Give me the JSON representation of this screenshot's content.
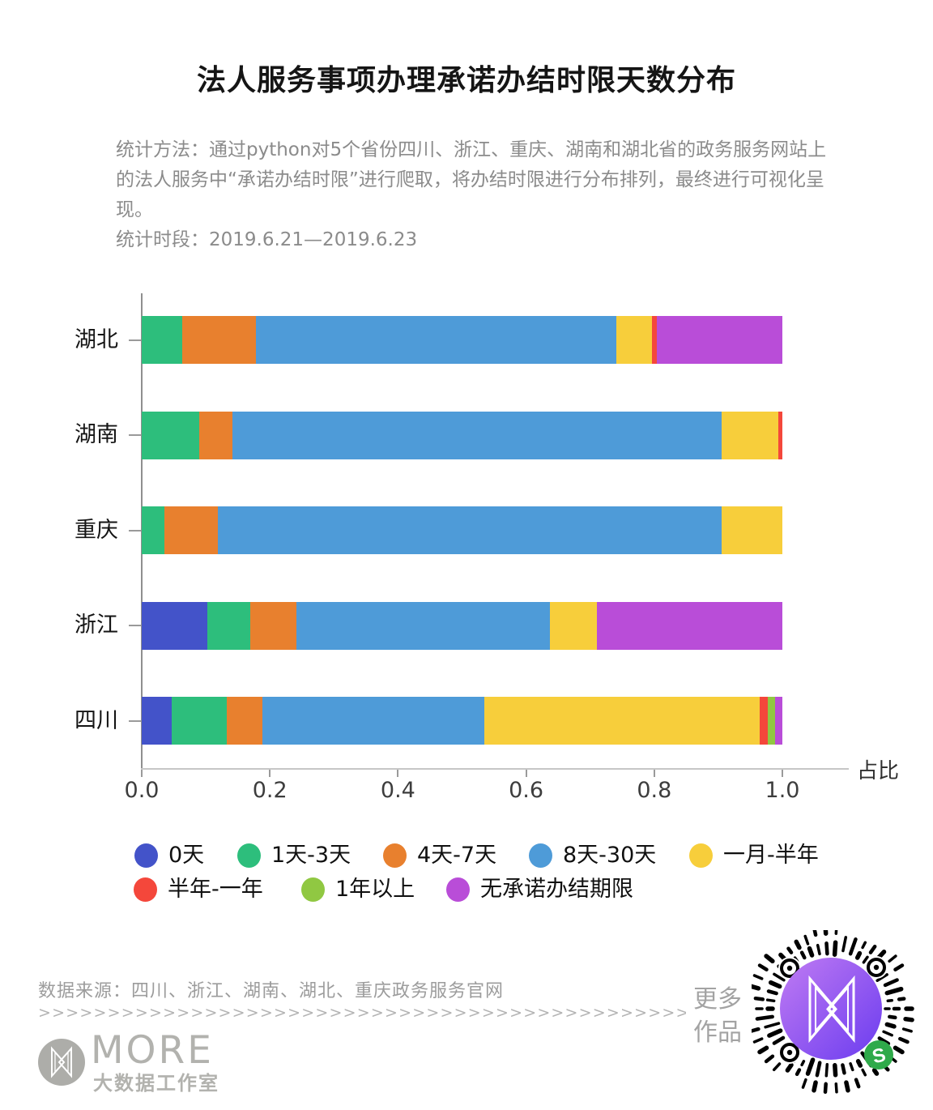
{
  "title": "法人服务事项办理承诺办结时限天数分布",
  "description": "统计方法：通过python对5个省份四川、浙江、重庆、湖南和湖北省的政务服务网站上的法人服务中“承诺办结时限”进行爬取，将办结时限进行分布排列，最终进行可视化呈现。\n统计时段：2019.6.21—2019.6.23",
  "chart_data": {
    "type": "bar",
    "orientation": "horizontal",
    "stacked": true,
    "xlabel": "占比",
    "xlim": [
      0,
      1
    ],
    "x_ticks": [
      0,
      0.2,
      0.4,
      0.6,
      0.8,
      1.0
    ],
    "categories": [
      "0天",
      "1天-3天",
      "4天-7天",
      "8天-30天",
      "一月-半年",
      "半年-一年",
      "1年以上",
      "无承诺办结期限"
    ],
    "colors": [
      "#4353C9",
      "#2DBE7C",
      "#E8802E",
      "#4E9BD8",
      "#F7CE3B",
      "#F4473B",
      "#90C842",
      "#B94DD8"
    ],
    "rows": [
      {
        "name": "湖北",
        "values": [
          0,
          0.063,
          0.115,
          0.563,
          0.055,
          0.008,
          0,
          0.196
        ]
      },
      {
        "name": "湖南",
        "values": [
          0,
          0.09,
          0.052,
          0.763,
          0.089,
          0.006,
          0,
          0
        ]
      },
      {
        "name": "重庆",
        "values": [
          0,
          0.035,
          0.084,
          0.786,
          0.095,
          0,
          0,
          0
        ]
      },
      {
        "name": "浙江",
        "values": [
          0.103,
          0.066,
          0.072,
          0.396,
          0.073,
          0,
          0,
          0.29
        ]
      },
      {
        "name": "四川",
        "values": [
          0.047,
          0.086,
          0.055,
          0.347,
          0.43,
          0.012,
          0.012,
          0.011
        ]
      }
    ]
  },
  "legend": {
    "rows": [
      [
        {
          "label": "0天",
          "color": "#4353C9"
        },
        {
          "label": "1天-3天",
          "color": "#2DBE7C"
        },
        {
          "label": "4天-7天",
          "color": "#E8802E"
        },
        {
          "label": "8天-30天",
          "color": "#4E9BD8"
        },
        {
          "label": "一月-半年",
          "color": "#F7CE3B"
        }
      ],
      [
        {
          "label": "半年-一年",
          "color": "#F4473B"
        },
        {
          "label": "1年以上",
          "color": "#90C842"
        },
        {
          "label": "无承诺办结期限",
          "color": "#B94DD8"
        }
      ]
    ]
  },
  "footer": {
    "source": "数据来源：四川、浙江、湖南、湖北、重庆政务服务官网",
    "arrows": ">>>>>>>>>>>>>>>>>>>>>>>>>>>>>>>>>>>>>>>>>>>>>>>>>>>>>>>>>>>>>>>",
    "more_works": "更多\n作品",
    "logo_text": "MORE",
    "logo_subtext": "大数据工作室"
  }
}
